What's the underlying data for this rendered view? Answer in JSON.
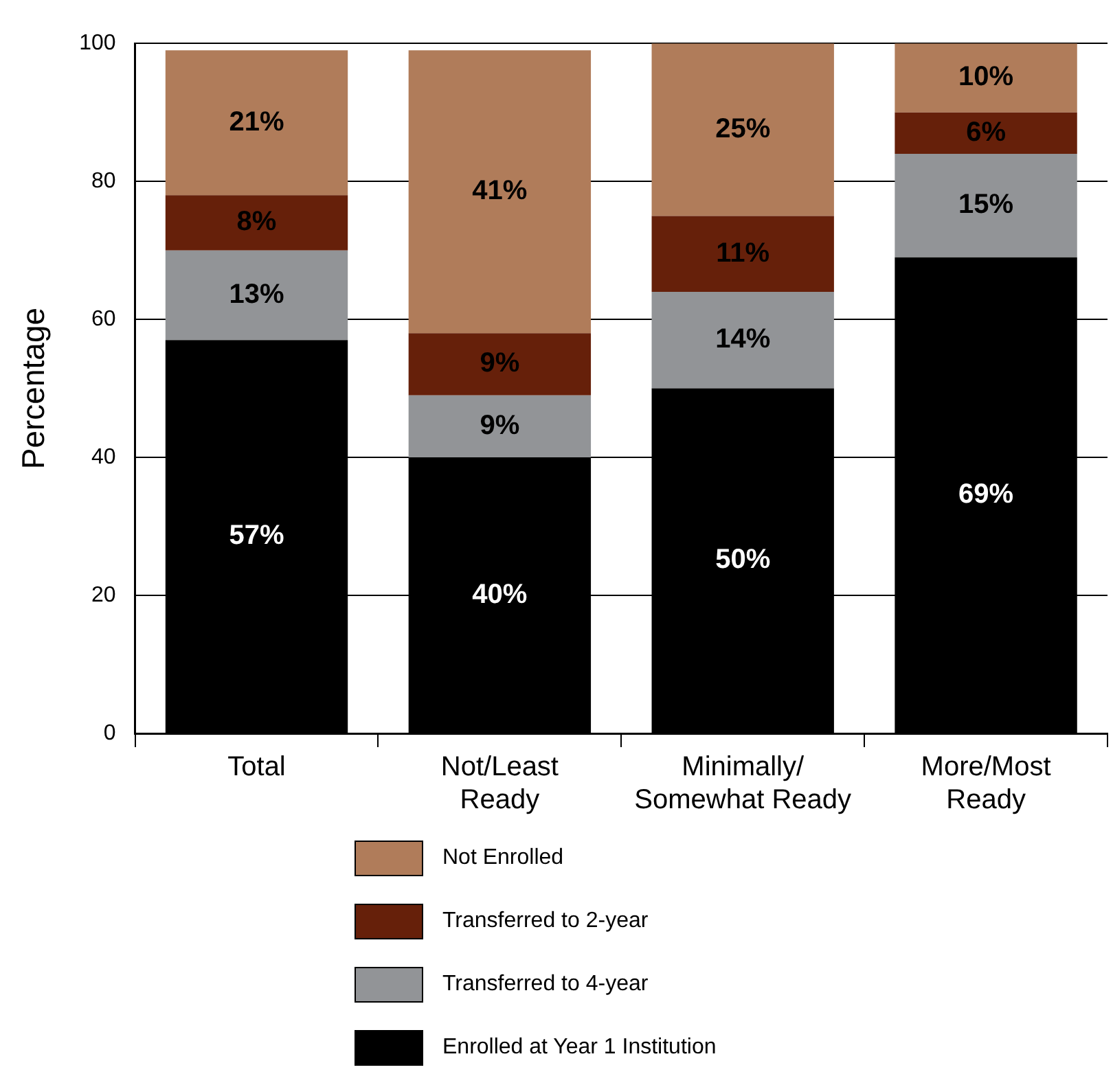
{
  "chart_data": {
    "type": "bar",
    "stacked": true,
    "ylabel": "Percentage",
    "categories": [
      "Total",
      "Not/Least\nReady",
      "Minimally/\nSomewhat Ready",
      "More/Most\nReady"
    ],
    "ylim": [
      0,
      100
    ],
    "yticks": [
      0,
      20,
      40,
      60,
      80,
      100
    ],
    "grid": "y",
    "legend": "bottom",
    "series": [
      {
        "name": "Enrolled at Year 1 Institution",
        "color": "#000000",
        "values": [
          57,
          40,
          50,
          69
        ],
        "value_labels": [
          "57%",
          "40%",
          "50%",
          "69%"
        ]
      },
      {
        "name": "Transferred to 4-year",
        "color": "#929497",
        "values": [
          13,
          9,
          14,
          15
        ],
        "value_labels": [
          "13%",
          "9%",
          "14%",
          "15%"
        ]
      },
      {
        "name": "Transferred to 2-year",
        "color": "#66200a",
        "values": [
          8,
          9,
          11,
          6
        ],
        "value_labels": [
          "8%",
          "9%",
          "11%",
          "6%"
        ]
      },
      {
        "name": "Not Enrolled",
        "color": "#b07c5a",
        "values": [
          21,
          41,
          25,
          10
        ],
        "value_labels": [
          "21%",
          "41%",
          "25%",
          "10%"
        ]
      }
    ]
  }
}
